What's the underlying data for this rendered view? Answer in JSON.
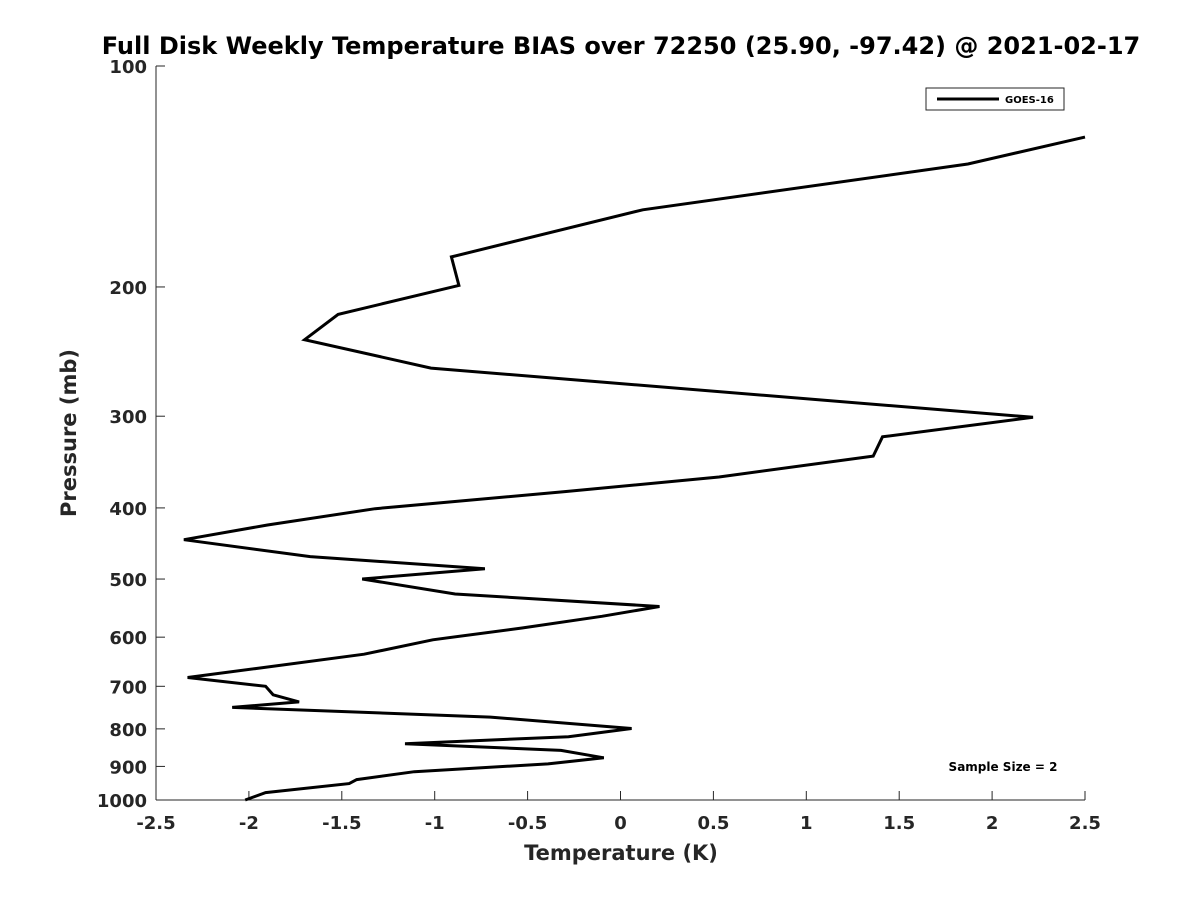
{
  "chart_data": {
    "type": "line",
    "title": "Full Disk Weekly Temperature BIAS over 72250 (25.90, -97.42) @ 2021-02-17",
    "xlabel": "Temperature (K)",
    "ylabel": "Pressure (mb)",
    "xlim": [
      -2.5,
      2.5
    ],
    "ylim": [
      100,
      1000
    ],
    "y_scale": "log",
    "y_reversed": true,
    "x_ticks": [
      "-2.5",
      "-2",
      "-1.5",
      "-1",
      "-0.5",
      "0",
      "0.5",
      "1",
      "1.5",
      "2",
      "2.5"
    ],
    "y_ticks": [
      "100",
      "200",
      "300",
      "400",
      "500",
      "600",
      "700",
      "800",
      "900",
      "1000"
    ],
    "grid": false,
    "legend": {
      "position": "top-right",
      "entries": [
        "GOES-16"
      ]
    },
    "annotation": "Sample Size = 2",
    "series": [
      {
        "name": "GOES-16",
        "color": "#000000",
        "points": [
          [
            2.5,
            125
          ],
          [
            1.87,
            136
          ],
          [
            0.12,
            157
          ],
          [
            -0.91,
            182
          ],
          [
            -0.87,
            199
          ],
          [
            -1.52,
            218
          ],
          [
            -1.7,
            236
          ],
          [
            -1.02,
            258
          ],
          [
            2.22,
            301
          ],
          [
            1.41,
            320
          ],
          [
            1.36,
            340
          ],
          [
            0.53,
            363
          ],
          [
            -0.3,
            380
          ],
          [
            -1.32,
            401
          ],
          [
            -1.9,
            422
          ],
          [
            -2.35,
            442
          ],
          [
            -1.67,
            466
          ],
          [
            -0.73,
            484
          ],
          [
            -1.39,
            500
          ],
          [
            -0.89,
            524
          ],
          [
            0.21,
            545
          ],
          [
            -0.1,
            562
          ],
          [
            -0.53,
            583
          ],
          [
            -1.01,
            605
          ],
          [
            -1.38,
            633
          ],
          [
            -1.96,
            662
          ],
          [
            -2.33,
            681
          ],
          [
            -1.91,
            700
          ],
          [
            -1.87,
            719
          ],
          [
            -1.73,
            735
          ],
          [
            -2.09,
            748
          ],
          [
            -0.7,
            771
          ],
          [
            0.06,
            799
          ],
          [
            -0.28,
            820
          ],
          [
            -1.16,
            838
          ],
          [
            -0.32,
            856
          ],
          [
            -0.09,
            876
          ],
          [
            -0.39,
            893
          ],
          [
            -1.11,
            915
          ],
          [
            -1.42,
            938
          ],
          [
            -1.46,
            950
          ],
          [
            -1.91,
            977
          ],
          [
            -2.02,
            1000
          ]
        ]
      }
    ]
  }
}
